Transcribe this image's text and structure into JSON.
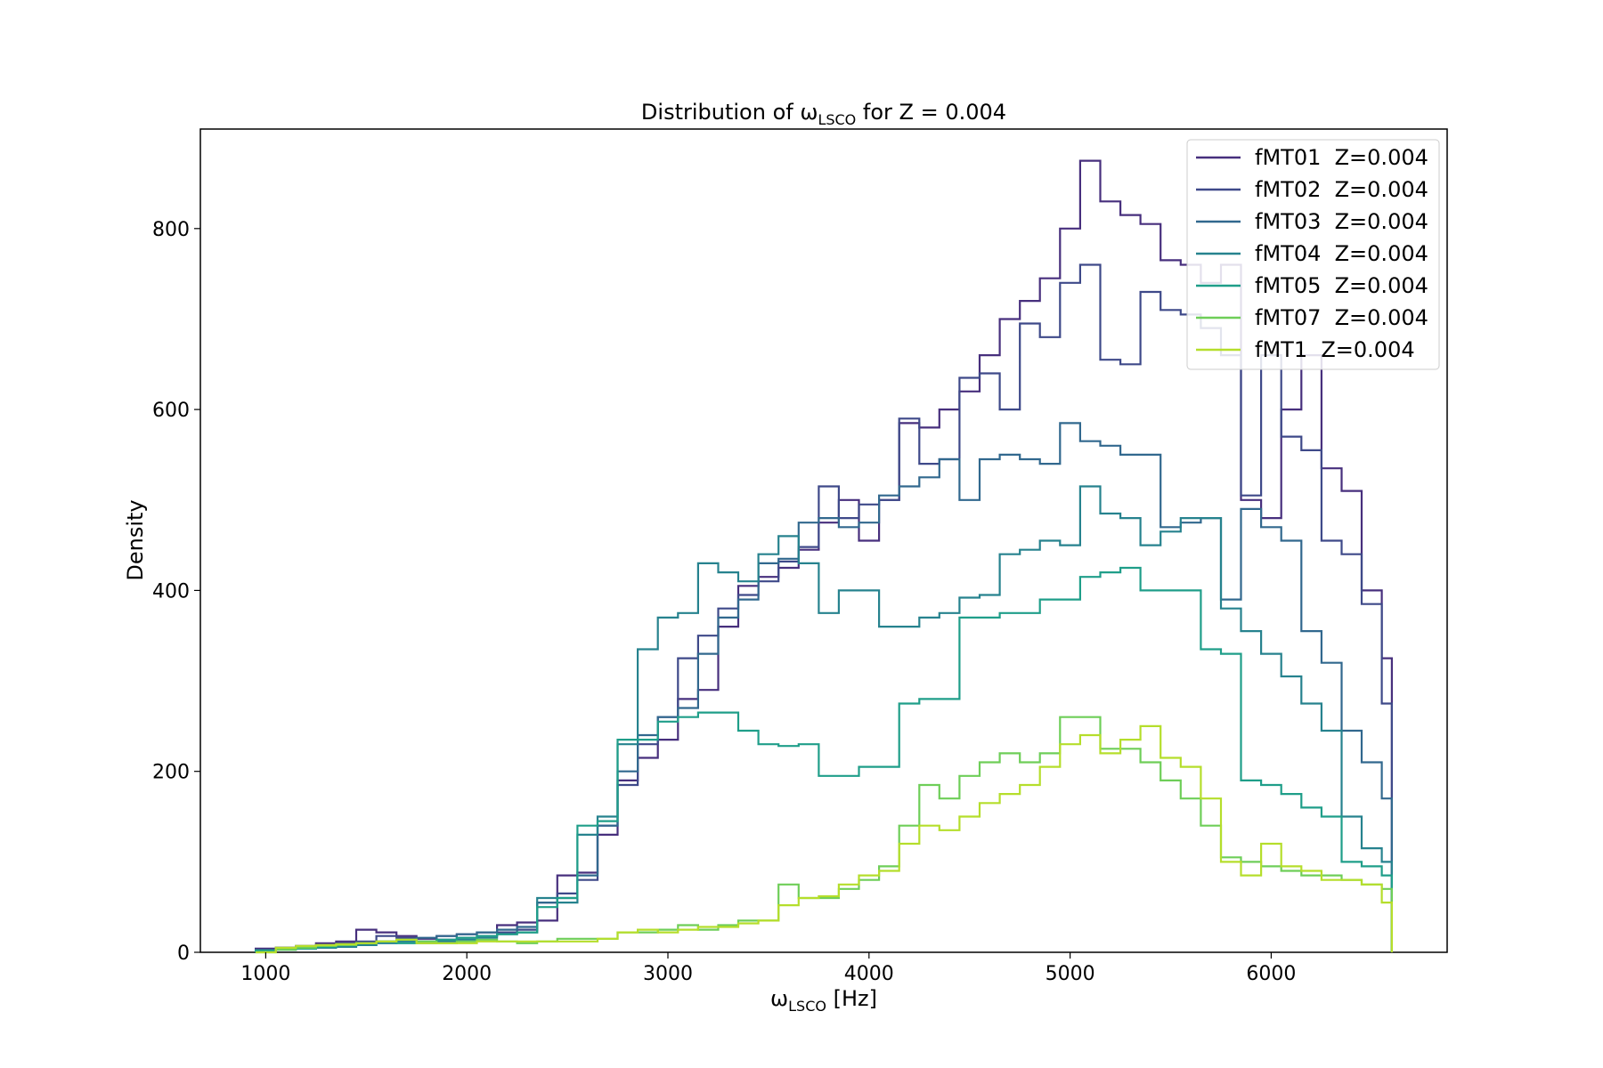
{
  "chart_data": {
    "type": "histogram-step",
    "title": "Distribution of ω",
    "title_subscript": "LSCO",
    "title_suffix": " for Z = 0.004",
    "xlabel": "ω",
    "xlabel_subscript": "LSCO",
    "xlabel_suffix": " [Hz]",
    "ylabel": "Density",
    "xlim": [
      675,
      6875
    ],
    "ylim": [
      0,
      910
    ],
    "xticks": [
      1000,
      2000,
      3000,
      4000,
      5000,
      6000
    ],
    "yticks": [
      0,
      200,
      400,
      600,
      800
    ],
    "legend_position": "top-right",
    "grid": false,
    "series": [
      {
        "name": "fMT01  Z=0.004",
        "color": "#472f7d",
        "edges": [
          950,
          1050,
          1150,
          1250,
          1350,
          1450,
          1550,
          1650,
          1750,
          1850,
          1950,
          2050,
          2150,
          2250,
          2350,
          2450,
          2550,
          2650,
          2750,
          2850,
          2950,
          3050,
          3150,
          3250,
          3350,
          3450,
          3550,
          3650,
          3750,
          3850,
          3950,
          4050,
          4150,
          4250,
          4350,
          4450,
          4550,
          4650,
          4750,
          4850,
          4950,
          5050,
          5150,
          5250,
          5350,
          5450,
          5550,
          5650,
          5750,
          5850,
          5950,
          6050,
          6150,
          6250,
          6350,
          6450,
          6550,
          6600
        ],
        "values": [
          4,
          5,
          7,
          10,
          12,
          25,
          22,
          18,
          15,
          18,
          20,
          22,
          30,
          33,
          35,
          85,
          88,
          130,
          190,
          215,
          235,
          280,
          290,
          360,
          405,
          415,
          425,
          445,
          475,
          500,
          455,
          500,
          585,
          580,
          600,
          620,
          660,
          700,
          720,
          745,
          800,
          875,
          830,
          815,
          805,
          765,
          760,
          740,
          760,
          500,
          480,
          600,
          660,
          535,
          510,
          400,
          325
        ]
      },
      {
        "name": "fMT02  Z=0.004",
        "color": "#3e4989",
        "edges": [
          950,
          1050,
          1150,
          1250,
          1350,
          1450,
          1550,
          1650,
          1750,
          1850,
          1950,
          2050,
          2150,
          2250,
          2350,
          2450,
          2550,
          2650,
          2750,
          2850,
          2950,
          3050,
          3150,
          3250,
          3350,
          3450,
          3550,
          3650,
          3750,
          3850,
          3950,
          4050,
          4150,
          4250,
          4350,
          4450,
          4550,
          4650,
          4750,
          4850,
          4950,
          5050,
          5150,
          5250,
          5350,
          5450,
          5550,
          5650,
          5750,
          5850,
          5950,
          6050,
          6150,
          6250,
          6350,
          6450,
          6550,
          6600
        ],
        "values": [
          3,
          5,
          6,
          8,
          10,
          12,
          18,
          16,
          12,
          14,
          16,
          18,
          22,
          25,
          55,
          65,
          80,
          140,
          185,
          230,
          260,
          325,
          350,
          380,
          395,
          410,
          432,
          448,
          515,
          480,
          495,
          500,
          590,
          540,
          545,
          635,
          640,
          600,
          695,
          680,
          740,
          760,
          655,
          650,
          730,
          710,
          705,
          690,
          660,
          505,
          660,
          570,
          555,
          455,
          440,
          385,
          275
        ]
      },
      {
        "name": "fMT03  Z=0.004",
        "color": "#31688e",
        "edges": [
          950,
          1050,
          1150,
          1250,
          1350,
          1450,
          1550,
          1650,
          1750,
          1850,
          1950,
          2050,
          2150,
          2250,
          2350,
          2450,
          2550,
          2650,
          2750,
          2850,
          2950,
          3050,
          3150,
          3250,
          3350,
          3450,
          3550,
          3650,
          3750,
          3850,
          3950,
          4050,
          4150,
          4250,
          4350,
          4450,
          4550,
          4650,
          4750,
          4850,
          4950,
          5050,
          5150,
          5250,
          5350,
          5450,
          5550,
          5650,
          5750,
          5850,
          5950,
          6050,
          6150,
          6250,
          6350,
          6450,
          6550,
          6600
        ],
        "values": [
          2,
          3,
          4,
          5,
          7,
          8,
          12,
          14,
          16,
          18,
          20,
          22,
          25,
          28,
          55,
          60,
          85,
          140,
          200,
          240,
          260,
          270,
          330,
          370,
          390,
          430,
          435,
          475,
          480,
          470,
          475,
          505,
          515,
          525,
          545,
          500,
          545,
          550,
          545,
          540,
          585,
          565,
          560,
          550,
          550,
          470,
          475,
          480,
          390,
          490,
          470,
          455,
          355,
          320,
          245,
          210,
          170
        ]
      },
      {
        "name": "fMT04  Z=0.004",
        "color": "#26828e",
        "edges": [
          950,
          1050,
          1150,
          1250,
          1350,
          1450,
          1550,
          1650,
          1750,
          1850,
          1950,
          2050,
          2150,
          2250,
          2350,
          2450,
          2550,
          2650,
          2750,
          2850,
          2950,
          3050,
          3150,
          3250,
          3350,
          3450,
          3550,
          3650,
          3750,
          3850,
          3950,
          4050,
          4150,
          4250,
          4350,
          4450,
          4550,
          4650,
          4750,
          4850,
          4950,
          5050,
          5150,
          5250,
          5350,
          5450,
          5550,
          5650,
          5750,
          5850,
          5950,
          6050,
          6150,
          6250,
          6350,
          6450,
          6550,
          6600
        ],
        "values": [
          2,
          3,
          4,
          5,
          6,
          8,
          10,
          12,
          10,
          12,
          14,
          16,
          20,
          22,
          60,
          55,
          130,
          150,
          230,
          335,
          370,
          375,
          430,
          420,
          410,
          440,
          460,
          430,
          375,
          400,
          400,
          360,
          360,
          370,
          375,
          392,
          395,
          440,
          445,
          455,
          450,
          515,
          485,
          480,
          450,
          465,
          480,
          480,
          380,
          355,
          330,
          305,
          275,
          245,
          150,
          115,
          100
        ]
      },
      {
        "name": "fMT05  Z=0.004",
        "color": "#1f9e89",
        "edges": [
          950,
          1050,
          1150,
          1250,
          1350,
          1450,
          1550,
          1650,
          1750,
          1850,
          1950,
          2050,
          2150,
          2250,
          2350,
          2450,
          2550,
          2650,
          2750,
          2850,
          2950,
          3050,
          3150,
          3250,
          3350,
          3450,
          3550,
          3650,
          3750,
          3850,
          3950,
          4050,
          4150,
          4250,
          4350,
          4450,
          4550,
          4650,
          4750,
          4850,
          4950,
          5050,
          5150,
          5250,
          5350,
          5450,
          5550,
          5650,
          5750,
          5850,
          5950,
          6050,
          6150,
          6250,
          6350,
          6450,
          6550,
          6600
        ],
        "values": [
          2,
          3,
          4,
          6,
          8,
          10,
          12,
          10,
          12,
          14,
          16,
          18,
          20,
          22,
          50,
          60,
          140,
          145,
          235,
          235,
          255,
          260,
          265,
          265,
          245,
          230,
          228,
          230,
          195,
          195,
          205,
          205,
          275,
          280,
          280,
          370,
          370,
          375,
          375,
          390,
          390,
          415,
          420,
          425,
          400,
          400,
          400,
          335,
          330,
          190,
          185,
          175,
          160,
          150,
          100,
          95,
          85
        ]
      },
      {
        "name": "fMT07  Z=0.004",
        "color": "#6ece58",
        "edges": [
          950,
          1050,
          1150,
          1250,
          1350,
          1450,
          1550,
          1650,
          1750,
          1850,
          1950,
          2050,
          2150,
          2250,
          2350,
          2450,
          2550,
          2650,
          2750,
          2850,
          2950,
          3050,
          3150,
          3250,
          3350,
          3450,
          3550,
          3650,
          3750,
          3850,
          3950,
          4050,
          4150,
          4250,
          4350,
          4450,
          4550,
          4650,
          4750,
          4850,
          4950,
          5050,
          5150,
          5250,
          5350,
          5450,
          5550,
          5650,
          5750,
          5850,
          5950,
          6050,
          6150,
          6250,
          6350,
          6450,
          6550,
          6600
        ],
        "values": [
          0,
          3,
          5,
          7,
          8,
          10,
          12,
          14,
          12,
          10,
          12,
          14,
          12,
          10,
          12,
          15,
          15,
          15,
          22,
          22,
          25,
          30,
          25,
          30,
          35,
          35,
          75,
          60,
          60,
          70,
          80,
          95,
          140,
          185,
          170,
          195,
          210,
          220,
          210,
          220,
          260,
          260,
          225,
          225,
          210,
          190,
          170,
          140,
          105,
          100,
          95,
          90,
          85,
          85,
          80,
          75,
          70
        ]
      },
      {
        "name": "fMT1  Z=0.004",
        "color": "#b5de2b",
        "edges": [
          950,
          1050,
          1150,
          1250,
          1350,
          1450,
          1550,
          1650,
          1750,
          1850,
          1950,
          2050,
          2150,
          2250,
          2350,
          2450,
          2550,
          2650,
          2750,
          2850,
          2950,
          3050,
          3150,
          3250,
          3350,
          3450,
          3550,
          3650,
          3750,
          3850,
          3950,
          4050,
          4150,
          4250,
          4350,
          4450,
          4550,
          4650,
          4750,
          4850,
          4950,
          5050,
          5150,
          5250,
          5350,
          5450,
          5550,
          5650,
          5750,
          5850,
          5950,
          6050,
          6150,
          6250,
          6350,
          6450,
          6550,
          6600
        ],
        "values": [
          0,
          5,
          7,
          8,
          9,
          10,
          12,
          14,
          10,
          10,
          10,
          12,
          12,
          12,
          12,
          12,
          12,
          15,
          22,
          25,
          22,
          25,
          28,
          28,
          32,
          35,
          52,
          60,
          62,
          75,
          85,
          90,
          120,
          140,
          135,
          150,
          165,
          175,
          185,
          205,
          230,
          240,
          220,
          235,
          250,
          215,
          205,
          170,
          100,
          85,
          120,
          95,
          90,
          80,
          80,
          75,
          55
        ]
      }
    ]
  }
}
